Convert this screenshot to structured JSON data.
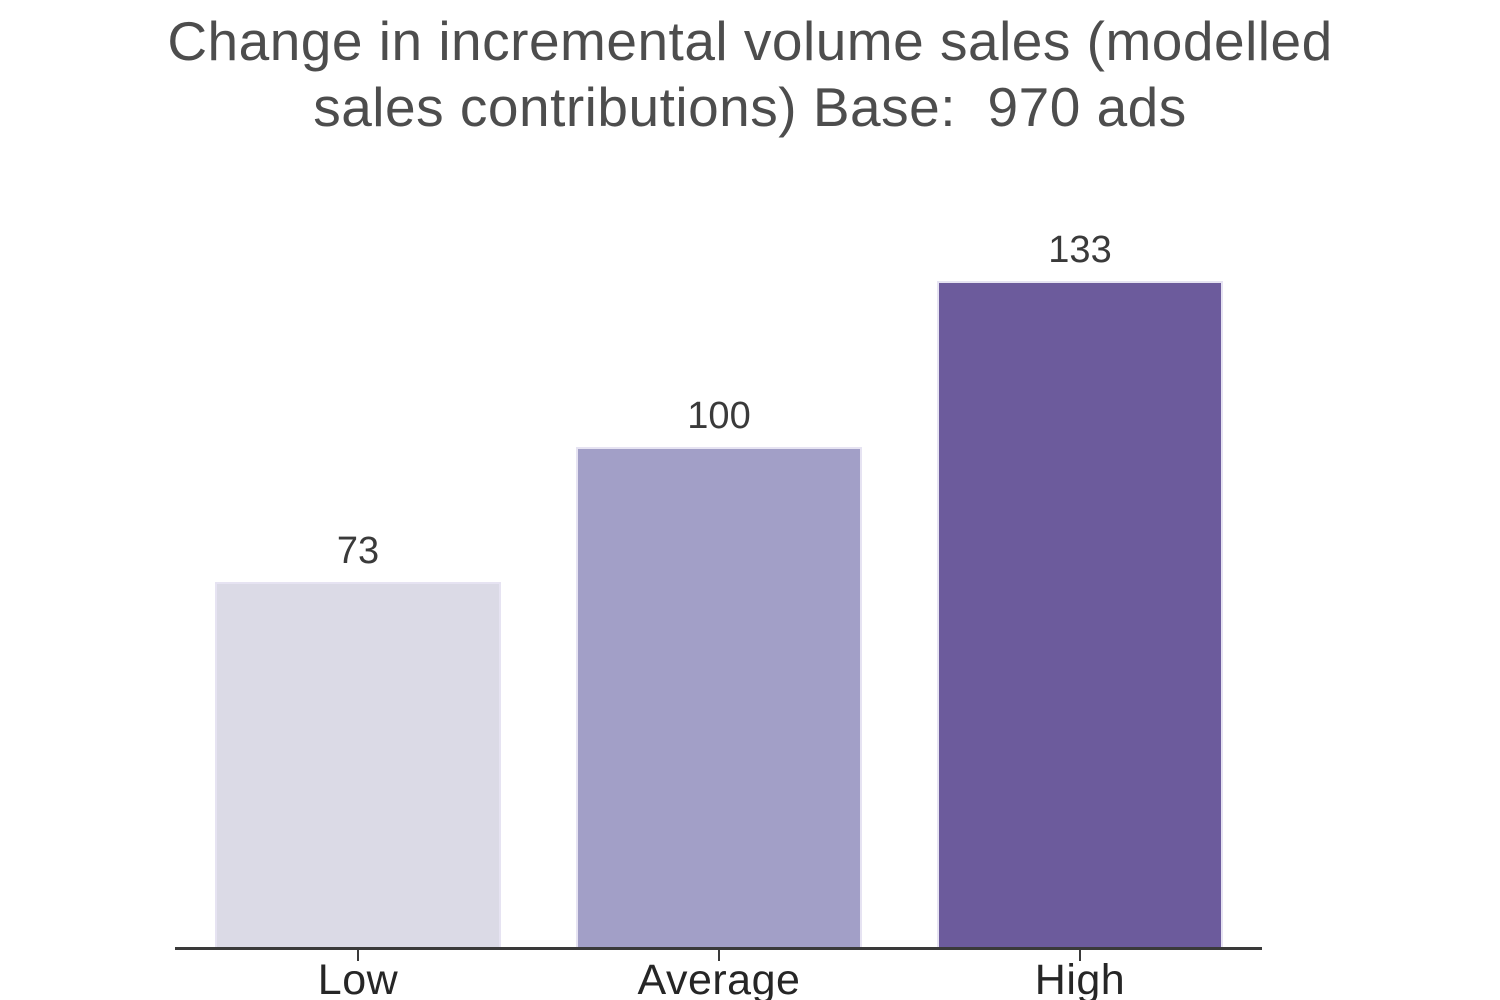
{
  "page": {
    "background_color": "#ffffff"
  },
  "chart_data": {
    "type": "bar",
    "title": "Change in incremental volume sales (modelled sales contributions) Base:  970 ads",
    "title_lines": [
      "Change in incremental volume sales (modelled",
      "sales contributions) Base:  970 ads"
    ],
    "categories": [
      "Low",
      "Average",
      "High"
    ],
    "values": [
      73,
      100,
      133
    ],
    "value_labels": [
      "73",
      "100",
      "133"
    ],
    "xlabel": "",
    "ylabel": "",
    "y_axis_visible": false,
    "grid": false,
    "legend": "none",
    "colors": {
      "bars": [
        "#dbdae6",
        "#a29fc7",
        "#6c5b9c"
      ],
      "bar_edge": "#e6e3f2",
      "title_text": "#4d4d4d",
      "value_label_text": "#3a3a3a",
      "category_label_text": "#262626",
      "axis": "#3a3a3a",
      "background": "#ffffff"
    }
  }
}
